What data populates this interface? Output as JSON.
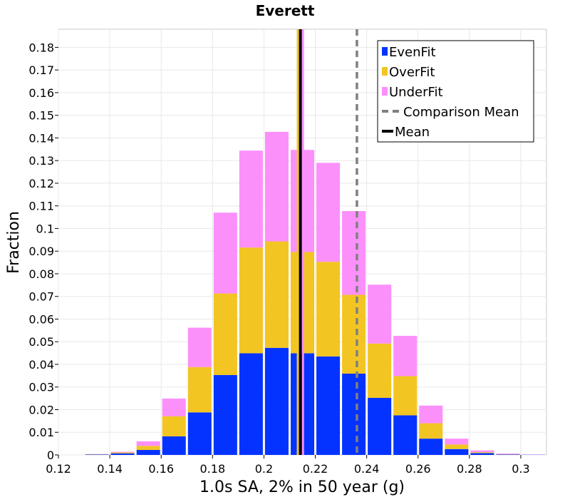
{
  "chart_data": {
    "type": "bar",
    "stacked": true,
    "title": "Everett",
    "xlabel": "1.0s SA, 2% in 50 year (g)",
    "ylabel": "Fraction",
    "xlim": [
      0.12,
      0.31
    ],
    "ylim": [
      0,
      0.188
    ],
    "xticks": [
      0.12,
      0.14,
      0.16,
      0.18,
      0.2,
      0.22,
      0.24,
      0.26,
      0.28,
      0.3
    ],
    "xtick_labels": [
      "0.12",
      "0.14",
      "0.16",
      "0.18",
      "0.2",
      "0.22",
      "0.24",
      "0.26",
      "0.28",
      "0.3"
    ],
    "yticks": [
      0,
      0.01,
      0.02,
      0.03,
      0.04,
      0.05,
      0.06,
      0.07,
      0.08,
      0.09,
      0.1,
      0.11,
      0.12,
      0.13,
      0.14,
      0.15,
      0.16,
      0.17,
      0.18
    ],
    "ytick_labels": [
      "0",
      "0.01",
      "0.02",
      "0.03",
      "0.04",
      "0.05",
      "0.06",
      "0.07",
      "0.08",
      "0.09",
      "0.1",
      "0.11",
      "0.12",
      "0.13",
      "0.14",
      "0.15",
      "0.16",
      "0.17",
      "0.18"
    ],
    "grid": true,
    "legend_position": "top-right",
    "bin_width": 0.01,
    "bin_centers": [
      0.135,
      0.145,
      0.155,
      0.165,
      0.175,
      0.185,
      0.195,
      0.205,
      0.215,
      0.225,
      0.235,
      0.245,
      0.255,
      0.265,
      0.275,
      0.285,
      0.295,
      0.305
    ],
    "series": [
      {
        "name": "EvenFit",
        "color": "#0433ff",
        "values": [
          0.0002,
          0.0007,
          0.0022,
          0.0082,
          0.0188,
          0.0353,
          0.0449,
          0.0473,
          0.0449,
          0.0435,
          0.0359,
          0.0252,
          0.0175,
          0.0072,
          0.0026,
          0.0008,
          0.0002,
          0.0001
        ]
      },
      {
        "name": "OverFit",
        "color": "#f2c523",
        "values": [
          0.0001,
          0.0004,
          0.0018,
          0.0089,
          0.02,
          0.036,
          0.0467,
          0.047,
          0.0447,
          0.0418,
          0.0348,
          0.024,
          0.0173,
          0.0068,
          0.002,
          0.0004,
          0.0001,
          0.0
        ]
      },
      {
        "name": "UnderFit",
        "color": "#fb90fb",
        "values": [
          0.0001,
          0.0003,
          0.002,
          0.0078,
          0.0174,
          0.0357,
          0.0428,
          0.0484,
          0.0451,
          0.0437,
          0.037,
          0.026,
          0.0178,
          0.0078,
          0.0026,
          0.0008,
          0.0003,
          0.0001
        ]
      }
    ],
    "reference_lines": [
      {
        "name": "Comparison Mean",
        "x": 0.2362,
        "color": "#808080",
        "style": "dashed"
      },
      {
        "name": "Mean",
        "x": 0.2142,
        "color": "#000000",
        "style": "solid"
      }
    ],
    "mean_line_companions": [
      {
        "series": "OverFit",
        "x": 0.2132,
        "color": "#f2c523"
      },
      {
        "series": "UnderFit",
        "x": 0.2152,
        "color": "#fb90fb"
      }
    ]
  }
}
